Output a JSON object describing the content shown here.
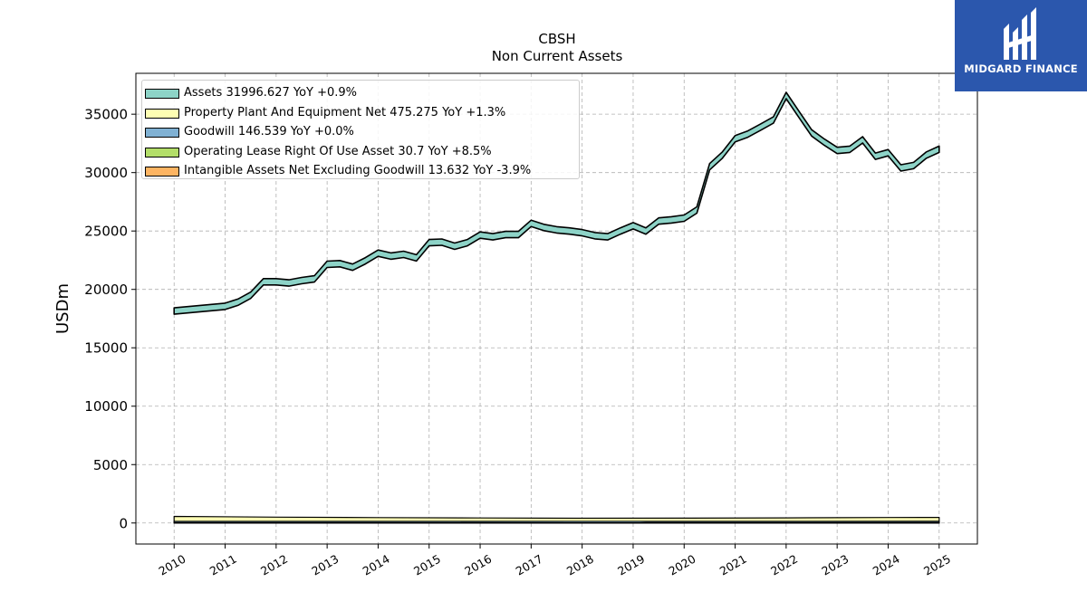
{
  "chart_data": {
    "type": "area",
    "title": "CBSH",
    "subtitle": "Non Current  Assets",
    "ylabel": "USDm",
    "xlabel": "",
    "ylim": [
      -1800,
      38500
    ],
    "xlim": [
      2009.25,
      2025.75
    ],
    "yticks": [
      0,
      5000,
      10000,
      15000,
      20000,
      25000,
      30000,
      35000
    ],
    "xticks": [
      "2010",
      "2011",
      "2012",
      "2013",
      "2014",
      "2015",
      "2016",
      "2017",
      "2018",
      "2019",
      "2020",
      "2021",
      "2022",
      "2023",
      "2024",
      "2025"
    ],
    "grid": true,
    "legend_position": "top-left",
    "series": [
      {
        "name": "Assets",
        "legend": "Assets  31996.627 YoY +0.9%",
        "color": "#8dd3c7",
        "points": [
          [
            2010.0,
            18150
          ],
          [
            2011.0,
            18550
          ],
          [
            2011.25,
            18900
          ],
          [
            2011.5,
            19500
          ],
          [
            2011.75,
            20650
          ],
          [
            2012.0,
            20650
          ],
          [
            2012.25,
            20550
          ],
          [
            2012.5,
            20750
          ],
          [
            2012.75,
            20900
          ],
          [
            2013.0,
            22150
          ],
          [
            2013.25,
            22200
          ],
          [
            2013.5,
            21900
          ],
          [
            2013.75,
            22450
          ],
          [
            2014.0,
            23100
          ],
          [
            2014.25,
            22850
          ],
          [
            2014.5,
            23000
          ],
          [
            2014.75,
            22700
          ],
          [
            2015.0,
            24000
          ],
          [
            2015.25,
            24050
          ],
          [
            2015.5,
            23700
          ],
          [
            2015.75,
            24000
          ],
          [
            2016.0,
            24650
          ],
          [
            2016.25,
            24500
          ],
          [
            2016.5,
            24700
          ],
          [
            2016.75,
            24700
          ],
          [
            2017.0,
            25650
          ],
          [
            2017.25,
            25300
          ],
          [
            2017.5,
            25100
          ],
          [
            2017.75,
            25000
          ],
          [
            2018.0,
            24850
          ],
          [
            2018.25,
            24600
          ],
          [
            2018.5,
            24500
          ],
          [
            2018.75,
            25000
          ],
          [
            2019.0,
            25450
          ],
          [
            2019.25,
            25000
          ],
          [
            2019.5,
            25850
          ],
          [
            2019.75,
            25950
          ],
          [
            2020.0,
            26100
          ],
          [
            2020.25,
            26800
          ],
          [
            2020.5,
            30500
          ],
          [
            2020.75,
            31500
          ],
          [
            2021.0,
            32900
          ],
          [
            2021.25,
            33300
          ],
          [
            2021.5,
            33900
          ],
          [
            2021.75,
            34500
          ],
          [
            2022.0,
            36600
          ],
          [
            2022.25,
            35000
          ],
          [
            2022.5,
            33400
          ],
          [
            2022.75,
            32600
          ],
          [
            2023.0,
            31900
          ],
          [
            2023.25,
            32000
          ],
          [
            2023.5,
            32800
          ],
          [
            2023.75,
            31400
          ],
          [
            2024.0,
            31700
          ],
          [
            2024.25,
            30400
          ],
          [
            2024.5,
            30600
          ],
          [
            2024.75,
            31500
          ],
          [
            2025.0,
            32000
          ]
        ]
      },
      {
        "name": "Property Plant And Equipment Net",
        "legend": "Property Plant And Equipment Net  475.275 YoY +1.3%",
        "color": "#ffffb3",
        "points": [
          [
            2010.0,
            560
          ],
          [
            2012.0,
            500
          ],
          [
            2014.0,
            460
          ],
          [
            2016.0,
            430
          ],
          [
            2018.0,
            410
          ],
          [
            2020.0,
            420
          ],
          [
            2022.0,
            440
          ],
          [
            2023.0,
            455
          ],
          [
            2024.0,
            470
          ],
          [
            2025.0,
            475
          ]
        ]
      },
      {
        "name": "Goodwill",
        "legend": "Goodwill  146.539 YoY +0.0%",
        "color": "#80b1d3",
        "points": [
          [
            2010.0,
            140
          ],
          [
            2025.0,
            146.5
          ]
        ]
      },
      {
        "name": "Operating Lease Right Of Use Asset",
        "legend": "Operating Lease Right Of Use Asset  30.7 YoY +8.5%",
        "color": "#b3de69",
        "points": [
          [
            2019.0,
            0
          ],
          [
            2019.25,
            35
          ],
          [
            2022.0,
            30
          ],
          [
            2025.0,
            30.7
          ]
        ]
      },
      {
        "name": "Intangible Assets Net Excluding Goodwill",
        "legend": "Intangible Assets Net Excluding Goodwill  13.632 YoY -3.9%",
        "color": "#fdb462",
        "points": [
          [
            2010.0,
            20
          ],
          [
            2015.0,
            18
          ],
          [
            2020.0,
            15
          ],
          [
            2025.0,
            13.6
          ]
        ]
      }
    ]
  },
  "logo": {
    "text": "MIDGARD FINANCE",
    "background": "#2b57ad",
    "icon": "midgard-logo-icon"
  }
}
